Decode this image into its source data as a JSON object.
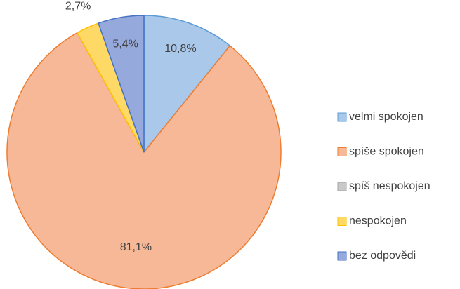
{
  "chart_data": {
    "type": "pie",
    "categories": [
      "velmi spokojen",
      "spíše spokojen",
      "spíš nespokojen",
      "nespokojen",
      "bez odpovědi"
    ],
    "values": [
      10.8,
      81.1,
      0,
      2.7,
      5.4
    ],
    "value_labels": [
      "10,8%",
      "81,1%",
      null,
      "2,7%",
      "5,4%"
    ],
    "colors": [
      "#a9c8ea",
      "#f6b897",
      "#c9c9c9",
      "#ffd966",
      "#96a9dc"
    ],
    "edge_colors": [
      "#5b9bd5",
      "#ed7d31",
      "#a5a5a5",
      "#ffc000",
      "#4472c4"
    ],
    "legend": "right"
  }
}
